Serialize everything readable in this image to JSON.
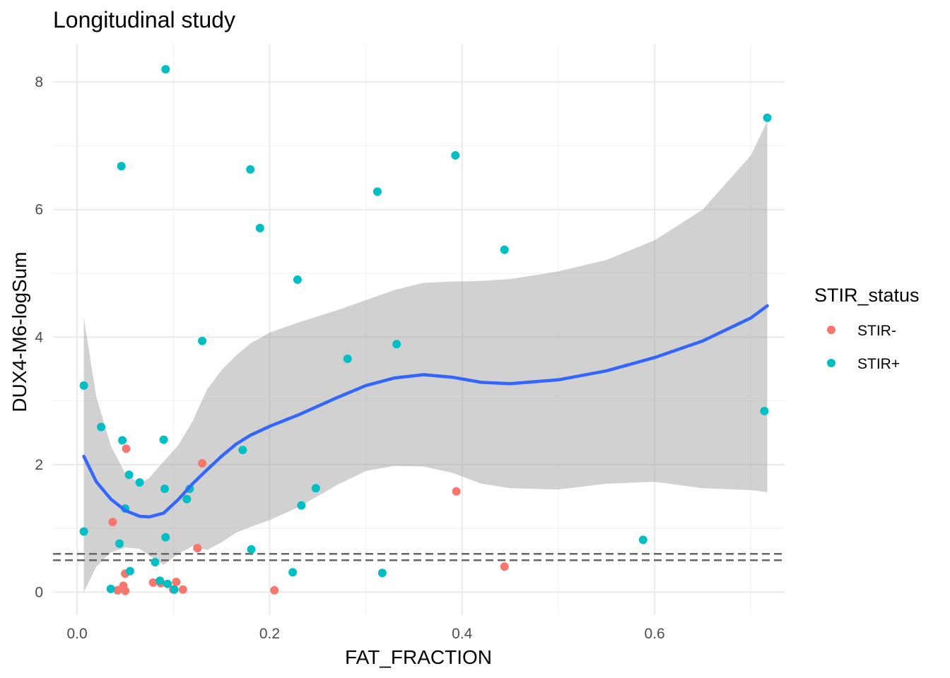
{
  "chart_data": {
    "type": "scatter",
    "title": "Longitudinal study",
    "xlabel": "FAT_FRACTION",
    "ylabel": "DUX4-M6-logSum",
    "xlim": [
      -0.025,
      0.735
    ],
    "ylim": [
      -0.35,
      8.6
    ],
    "x_ticks": [
      0.0,
      0.2,
      0.4,
      0.6
    ],
    "x_tick_labels": [
      "0.0",
      "0.2",
      "0.4",
      "0.6"
    ],
    "y_ticks": [
      0,
      2,
      4,
      6,
      8
    ],
    "y_tick_labels": [
      "0",
      "2",
      "4",
      "6",
      "8"
    ],
    "grid": true,
    "legend": {
      "title": "STIR_status",
      "placement": "right",
      "entries": [
        {
          "label": "STIR-",
          "color": "#F8766D"
        },
        {
          "label": "STIR+",
          "color": "#00BFC4"
        }
      ]
    },
    "series": [
      {
        "name": "STIR-",
        "color": "#F8766D",
        "points": [
          [
            0.037,
            1.1
          ],
          [
            0.051,
            2.25
          ],
          [
            0.05,
            0.29
          ],
          [
            0.048,
            0.1
          ],
          [
            0.042,
            0.03
          ],
          [
            0.05,
            0.02
          ],
          [
            0.079,
            0.15
          ],
          [
            0.087,
            0.14
          ],
          [
            0.1,
            0.04
          ],
          [
            0.103,
            0.16
          ],
          [
            0.11,
            0.04
          ],
          [
            0.125,
            0.69
          ],
          [
            0.13,
            2.02
          ],
          [
            0.205,
            0.03
          ],
          [
            0.394,
            1.58
          ],
          [
            0.444,
            0.4
          ]
        ]
      },
      {
        "name": "STIR+",
        "color": "#00BFC4",
        "points": [
          [
            0.092,
            8.2
          ],
          [
            0.046,
            6.68
          ],
          [
            0.18,
            6.63
          ],
          [
            0.19,
            5.71
          ],
          [
            0.312,
            6.28
          ],
          [
            0.393,
            6.85
          ],
          [
            0.444,
            5.37
          ],
          [
            0.717,
            7.44
          ],
          [
            0.229,
            4.9
          ],
          [
            0.13,
            3.94
          ],
          [
            0.281,
            3.66
          ],
          [
            0.332,
            3.89
          ],
          [
            0.007,
            3.24
          ],
          [
            0.025,
            2.59
          ],
          [
            0.047,
            2.38
          ],
          [
            0.09,
            2.39
          ],
          [
            0.172,
            2.23
          ],
          [
            0.054,
            1.84
          ],
          [
            0.065,
            1.72
          ],
          [
            0.091,
            1.62
          ],
          [
            0.117,
            1.62
          ],
          [
            0.114,
            1.46
          ],
          [
            0.05,
            1.31
          ],
          [
            0.248,
            1.63
          ],
          [
            0.233,
            1.36
          ],
          [
            0.007,
            0.95
          ],
          [
            0.044,
            0.76
          ],
          [
            0.092,
            0.86
          ],
          [
            0.081,
            0.47
          ],
          [
            0.055,
            0.33
          ],
          [
            0.181,
            0.67
          ],
          [
            0.224,
            0.31
          ],
          [
            0.317,
            0.3
          ],
          [
            0.588,
            0.82
          ],
          [
            0.714,
            2.84
          ],
          [
            0.035,
            0.05
          ],
          [
            0.086,
            0.18
          ],
          [
            0.094,
            0.13
          ],
          [
            0.101,
            0.04
          ]
        ]
      }
    ],
    "smooth": {
      "color": "#3366FF",
      "band_color": "#999999",
      "x": [
        0.007,
        0.02,
        0.035,
        0.05,
        0.065,
        0.075,
        0.09,
        0.105,
        0.12,
        0.135,
        0.15,
        0.165,
        0.18,
        0.2,
        0.23,
        0.27,
        0.3,
        0.33,
        0.36,
        0.39,
        0.42,
        0.45,
        0.5,
        0.55,
        0.6,
        0.65,
        0.7,
        0.717
      ],
      "fit": [
        2.13,
        1.73,
        1.46,
        1.28,
        1.19,
        1.18,
        1.24,
        1.45,
        1.7,
        1.92,
        2.13,
        2.32,
        2.46,
        2.6,
        2.78,
        3.05,
        3.24,
        3.36,
        3.41,
        3.37,
        3.29,
        3.27,
        3.33,
        3.47,
        3.68,
        3.94,
        4.3,
        4.49
      ],
      "upper": [
        4.3,
        3.06,
        2.3,
        1.86,
        1.7,
        1.79,
        2.05,
        2.3,
        2.68,
        3.18,
        3.48,
        3.71,
        3.9,
        4.07,
        4.23,
        4.42,
        4.58,
        4.74,
        4.85,
        4.87,
        4.88,
        4.91,
        5.03,
        5.21,
        5.52,
        6.0,
        6.85,
        7.39
      ],
      "lower": [
        0.0,
        0.4,
        0.62,
        0.7,
        0.68,
        0.57,
        0.43,
        0.6,
        0.72,
        0.66,
        0.78,
        0.93,
        1.02,
        1.13,
        1.33,
        1.68,
        1.9,
        1.98,
        1.97,
        1.87,
        1.7,
        1.63,
        1.61,
        1.7,
        1.73,
        1.63,
        1.6,
        1.57
      ]
    },
    "reference_lines": [
      0.5,
      0.6
    ]
  }
}
